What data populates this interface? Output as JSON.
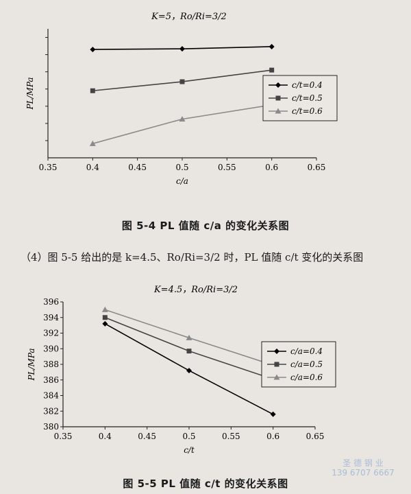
{
  "paragraph": "（4）图 5-5 给出的是 k=4.5、Ro/Ri=3/2 时，PL 值随 c/t 变化的关系图",
  "watermark": {
    "line1": "圣 德 钢 业",
    "line2": "139 6707 6667"
  },
  "chart_data": [
    {
      "type": "line",
      "title": "K=5，Ro/Ri=3/2",
      "caption": "图 5-4   PL 值随 c/a 的变化关系图",
      "xlabel": "c/a",
      "ylabel": "PL/MPa",
      "xlim": [
        0.35,
        0.65
      ],
      "xticks": [
        "0.35",
        "0.4",
        "0.45",
        "0.5",
        "0.55",
        "0.6",
        "0.65"
      ],
      "yticks": [],
      "ylim": [
        0,
        1
      ],
      "legend_position": "right",
      "x": [
        0.4,
        0.5,
        0.6
      ],
      "series": [
        {
          "name": "c/t=0.4",
          "values": [
            0.84,
            0.845,
            0.862
          ],
          "marker": "diamond",
          "color": "#000000"
        },
        {
          "name": "c/t=0.5",
          "values": [
            0.52,
            0.59,
            0.68
          ],
          "marker": "square",
          "color": "#444444"
        },
        {
          "name": "c/t=0.6",
          "values": [
            0.11,
            0.3,
            0.41
          ],
          "marker": "triangle",
          "color": "#8a8a8a"
        }
      ]
    },
    {
      "type": "line",
      "title": "K=4.5，Ro/Ri=3/2",
      "caption": "图 5-5   PL 值随 c/t 的变化关系图",
      "xlabel": "c/t",
      "ylabel": "PL/MPa",
      "xlim": [
        0.35,
        0.65
      ],
      "ylim": [
        380,
        396
      ],
      "xticks": [
        "0.35",
        "0.4",
        "0.45",
        "0.5",
        "0.55",
        "0.6",
        "0.65"
      ],
      "yticks": [
        "380",
        "382",
        "384",
        "386",
        "388",
        "390",
        "392",
        "394",
        "396"
      ],
      "legend_position": "right",
      "x": [
        0.4,
        0.5,
        0.6
      ],
      "series": [
        {
          "name": "c/a=0.4",
          "values": [
            393.2,
            387.2,
            381.6
          ],
          "marker": "diamond",
          "color": "#000000"
        },
        {
          "name": "c/a=0.5",
          "values": [
            394.0,
            389.7,
            386.1
          ],
          "marker": "square",
          "color": "#444444"
        },
        {
          "name": "c/a=0.6",
          "values": [
            395.0,
            391.4,
            387.9
          ],
          "marker": "triangle",
          "color": "#8a8a8a"
        }
      ]
    }
  ]
}
